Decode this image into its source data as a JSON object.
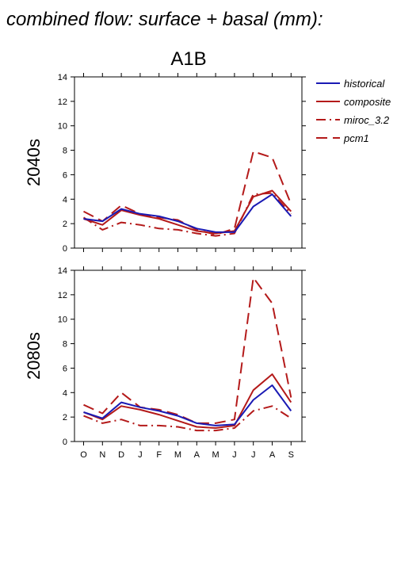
{
  "figure": {
    "title": "combined flow: surface + basal (mm):",
    "scenario": "A1B"
  },
  "legend": [
    {
      "key": "historical",
      "label": "historical",
      "color": "#1a1ab4",
      "dash": "solid"
    },
    {
      "key": "composite",
      "label": "composite",
      "color": "#b41a1a",
      "dash": "solid"
    },
    {
      "key": "miroc",
      "label": "miroc_3.2",
      "color": "#b41a1a",
      "dash": "dashdot"
    },
    {
      "key": "pcm1",
      "label": "pcm1",
      "color": "#b41a1a",
      "dash": "dash"
    }
  ],
  "chart_data": [
    {
      "type": "line",
      "panel_label": "2040s",
      "categories": [
        "O",
        "N",
        "D",
        "J",
        "F",
        "M",
        "A",
        "M",
        "J",
        "J",
        "A",
        "S"
      ],
      "ylim": [
        0,
        14
      ],
      "yticks": [
        0,
        2,
        4,
        6,
        8,
        10,
        12,
        14
      ],
      "series": [
        {
          "name": "historical",
          "values": [
            2.4,
            2.2,
            3.2,
            2.8,
            2.6,
            2.2,
            1.6,
            1.3,
            1.3,
            3.4,
            4.4,
            2.6
          ]
        },
        {
          "name": "composite",
          "values": [
            2.4,
            1.9,
            3.1,
            2.7,
            2.4,
            1.9,
            1.4,
            1.2,
            1.4,
            4.2,
            4.7,
            3.0
          ]
        },
        {
          "name": "miroc_3.2",
          "values": [
            2.5,
            1.5,
            2.1,
            1.9,
            1.6,
            1.5,
            1.2,
            1.0,
            1.2,
            4.4,
            4.5,
            2.8
          ]
        },
        {
          "name": "pcm1",
          "values": [
            3.0,
            2.2,
            3.5,
            2.8,
            2.5,
            2.3,
            1.5,
            1.1,
            1.6,
            7.9,
            7.4,
            3.6
          ]
        }
      ]
    },
    {
      "type": "line",
      "panel_label": "2080s",
      "categories": [
        "O",
        "N",
        "D",
        "J",
        "F",
        "M",
        "A",
        "M",
        "J",
        "J",
        "A",
        "S"
      ],
      "ylim": [
        0,
        14
      ],
      "yticks": [
        0,
        2,
        4,
        6,
        8,
        10,
        12,
        14
      ],
      "series": [
        {
          "name": "historical",
          "values": [
            2.4,
            1.9,
            3.2,
            2.8,
            2.5,
            2.1,
            1.5,
            1.3,
            1.4,
            3.4,
            4.6,
            2.5
          ]
        },
        {
          "name": "composite",
          "values": [
            2.4,
            1.8,
            2.9,
            2.6,
            2.2,
            1.7,
            1.2,
            1.1,
            1.3,
            4.2,
            5.5,
            3.2
          ]
        },
        {
          "name": "miroc_3.2",
          "values": [
            2.1,
            1.5,
            1.8,
            1.3,
            1.3,
            1.2,
            0.9,
            0.9,
            1.1,
            2.5,
            2.9,
            1.9
          ]
        },
        {
          "name": "pcm1",
          "values": [
            3.0,
            2.3,
            4.0,
            2.8,
            2.6,
            2.2,
            1.5,
            1.5,
            1.8,
            13.4,
            11.3,
            3.6
          ]
        }
      ]
    }
  ]
}
